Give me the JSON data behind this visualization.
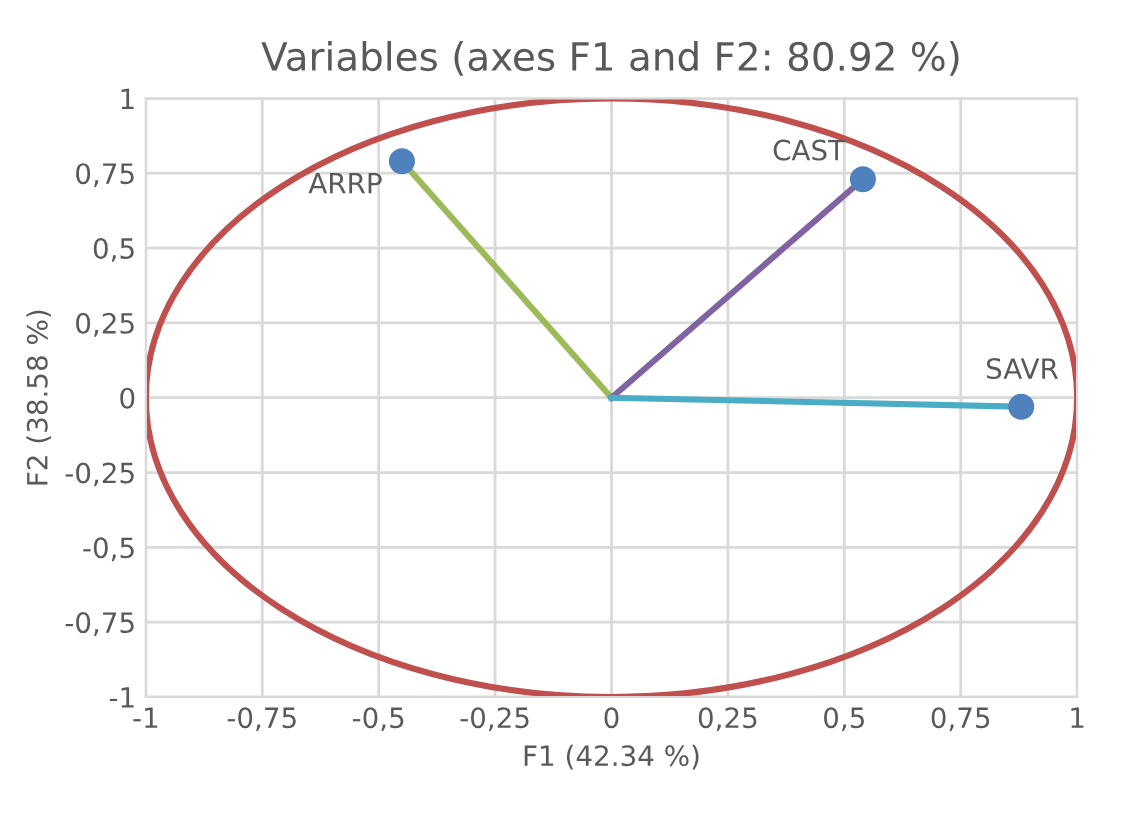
{
  "chart_data": {
    "type": "scatter",
    "title": "Variables (axes F1 and F2: 80.92 %)",
    "xlabel": "F1 (42.34 %)",
    "ylabel": "F2 (38.58 %)",
    "xlim": [
      -1,
      1
    ],
    "ylim": [
      -1,
      1
    ],
    "xticks": [
      -1,
      {
        "value": -0.75,
        "label": "-0,75"
      },
      {
        "value": -0.5,
        "label": "-0,5"
      },
      {
        "value": -0.25,
        "label": "-0,25"
      },
      0,
      {
        "value": 0.25,
        "label": "0,25"
      },
      {
        "value": 0.5,
        "label": "0,5"
      },
      {
        "value": 0.75,
        "label": "0,75"
      },
      1
    ],
    "yticks": [
      -1,
      {
        "value": -0.75,
        "label": "-0,75"
      },
      {
        "value": -0.5,
        "label": "-0,5"
      },
      {
        "value": -0.25,
        "label": "-0,25"
      },
      0,
      {
        "value": 0.25,
        "label": "0,25"
      },
      {
        "value": 0.5,
        "label": "0,5"
      },
      {
        "value": 0.75,
        "label": "0,75"
      },
      1
    ],
    "grid": true,
    "legend": false,
    "series": [
      {
        "type": "line",
        "color": "#9bbb59",
        "marker": "none",
        "x": [
          0,
          -0.45
        ],
        "values": [
          0,
          0.79
        ]
      },
      {
        "type": "line",
        "color": "#8064a2",
        "marker": "none",
        "x": [
          0,
          0.54
        ],
        "values": [
          0,
          0.73
        ]
      },
      {
        "type": "line",
        "color": "#4bacc6",
        "marker": "none",
        "x": [
          0,
          0.88
        ],
        "values": [
          0,
          -0.03
        ]
      },
      {
        "type": "scatter",
        "color": "#4f81bd",
        "marker": "circle",
        "x": [
          -0.45,
          0.54,
          0.88
        ],
        "values": [
          0.79,
          0.73,
          -0.03
        ]
      }
    ],
    "annotations": [
      {
        "text": "ARRP",
        "x": -0.45,
        "y": 0.79
      },
      {
        "text": "CAST",
        "x": 0.54,
        "y": 0.73
      },
      {
        "text": "SAVR",
        "x": 0.88,
        "y": -0.03
      }
    ]
  }
}
